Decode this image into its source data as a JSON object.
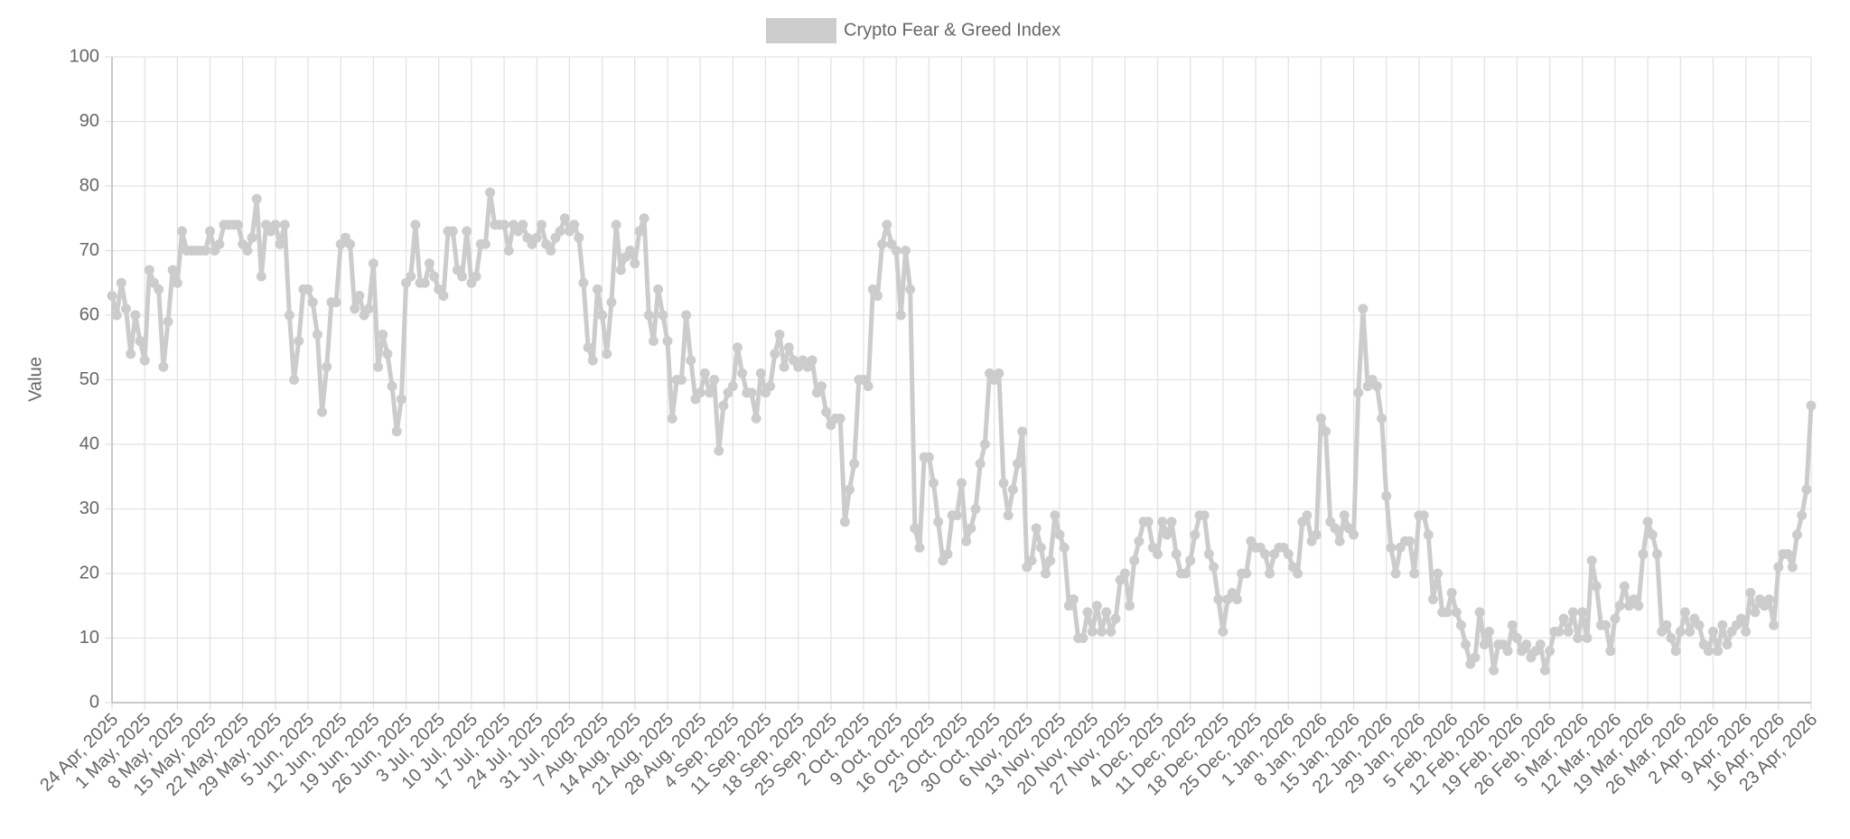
{
  "chart_data": {
    "type": "line",
    "y_label": "Value",
    "ylim": [
      0,
      100
    ],
    "yticks": [
      0,
      10,
      20,
      30,
      40,
      50,
      60,
      70,
      80,
      90,
      100
    ],
    "grid": true,
    "legend": "top",
    "categories": [
      "24 Apr, 2025",
      null,
      null,
      null,
      null,
      null,
      null,
      "1 May, 2025",
      null,
      null,
      null,
      null,
      null,
      null,
      "8 May, 2025",
      null,
      null,
      null,
      null,
      null,
      null,
      "15 May, 2025",
      null,
      null,
      null,
      null,
      null,
      null,
      "22 May, 2025",
      null,
      null,
      null,
      null,
      null,
      null,
      "29 May, 2025",
      null,
      null,
      null,
      null,
      null,
      null,
      "5 Jun, 2025",
      null,
      null,
      null,
      null,
      null,
      null,
      "12 Jun, 2025",
      null,
      null,
      null,
      null,
      null,
      null,
      "19 Jun, 2025",
      null,
      null,
      null,
      null,
      null,
      null,
      "26 Jun, 2025",
      null,
      null,
      null,
      null,
      null,
      null,
      "3 Jul, 2025",
      null,
      null,
      null,
      null,
      null,
      null,
      "10 Jul, 2025",
      null,
      null,
      null,
      null,
      null,
      null,
      "17 Jul, 2025",
      null,
      null,
      null,
      null,
      null,
      null,
      "24 Jul, 2025",
      null,
      null,
      null,
      null,
      null,
      null,
      "31 Jul, 2025",
      null,
      null,
      null,
      null,
      null,
      null,
      "7 Aug, 2025",
      null,
      null,
      null,
      null,
      null,
      null,
      "14 Aug, 2025",
      null,
      null,
      null,
      null,
      null,
      null,
      "21 Aug, 2025",
      null,
      null,
      null,
      null,
      null,
      null,
      "28 Aug, 2025",
      null,
      null,
      null,
      null,
      null,
      null,
      "4 Sep, 2025",
      null,
      null,
      null,
      null,
      null,
      null,
      "11 Sep, 2025",
      null,
      null,
      null,
      null,
      null,
      null,
      "18 Sep, 2025",
      null,
      null,
      null,
      null,
      null,
      null,
      "25 Sep, 2025",
      null,
      null,
      null,
      null,
      null,
      null,
      "2 Oct, 2025",
      null,
      null,
      null,
      null,
      null,
      null,
      "9 Oct, 2025",
      null,
      null,
      null,
      null,
      null,
      null,
      "16 Oct, 2025",
      null,
      null,
      null,
      null,
      null,
      null,
      "23 Oct, 2025",
      null,
      null,
      null,
      null,
      null,
      null,
      "30 Oct, 2025",
      null,
      null,
      null,
      null,
      null,
      null,
      "6 Nov, 2025",
      null,
      null,
      null,
      null,
      null,
      null,
      "13 Nov, 2025",
      null,
      null,
      null,
      null,
      null,
      null,
      "20 Nov, 2025",
      null,
      null,
      null,
      null,
      null,
      null,
      "27 Nov, 2025",
      null,
      null,
      null,
      null,
      null,
      null,
      "4 Dec, 2025",
      null,
      null,
      null,
      null,
      null,
      null,
      "11 Dec, 2025",
      null,
      null,
      null,
      null,
      null,
      null,
      "18 Dec, 2025",
      null,
      null,
      null,
      null,
      null,
      null,
      "25 Dec, 2025",
      null,
      null,
      null,
      null,
      null,
      null,
      "1 Jan, 2026",
      null,
      null,
      null,
      null,
      null,
      null,
      "8 Jan, 2026",
      null,
      null,
      null,
      null,
      null,
      null,
      "15 Jan, 2026",
      null,
      null,
      null,
      null,
      null,
      null,
      "22 Jan, 2026",
      null,
      null,
      null,
      null,
      null,
      null,
      "29 Jan, 2026",
      null,
      null,
      null,
      null,
      null,
      null,
      "5 Feb, 2026",
      null,
      null,
      null,
      null,
      null,
      null,
      "12 Feb, 2026",
      null,
      null,
      null,
      null,
      null,
      null,
      "19 Feb, 2026",
      null,
      null,
      null,
      null,
      null,
      null,
      "26 Feb, 2026",
      null,
      null,
      null,
      null,
      null,
      null,
      "5 Mar, 2026",
      null,
      null,
      null,
      null,
      null,
      null,
      "12 Mar, 2026",
      null,
      null,
      null,
      null,
      null,
      null,
      "19 Mar, 2026",
      null,
      null,
      null,
      null,
      null,
      null,
      "26 Mar, 2026",
      null,
      null,
      null,
      null,
      null,
      null,
      "2 Apr, 2026",
      null,
      null,
      null,
      null,
      null,
      null,
      "9 Apr, 2026",
      null,
      null,
      null,
      null,
      null,
      null,
      "16 Apr, 2026",
      null,
      null,
      null,
      null,
      null,
      null,
      "23 Apr, 2026"
    ],
    "series": [
      {
        "name": "Crypto Fear & Greed Index",
        "color": "#cccccc",
        "values": [
          63,
          60,
          65,
          61,
          54,
          60,
          56,
          53,
          67,
          65,
          64,
          52,
          59,
          67,
          65,
          73,
          70,
          70,
          70,
          70,
          70,
          73,
          70,
          71,
          74,
          74,
          74,
          74,
          71,
          70,
          72,
          78,
          66,
          74,
          73,
          74,
          71,
          74,
          60,
          50,
          56,
          64,
          64,
          62,
          57,
          45,
          52,
          62,
          62,
          71,
          72,
          71,
          61,
          63,
          60,
          61,
          68,
          52,
          57,
          54,
          49,
          42,
          47,
          65,
          66,
          74,
          65,
          65,
          68,
          66,
          64,
          63,
          73,
          73,
          67,
          66,
          73,
          65,
          66,
          71,
          71,
          79,
          74,
          74,
          74,
          70,
          74,
          73,
          74,
          72,
          71,
          72,
          74,
          71,
          70,
          72,
          73,
          75,
          73,
          74,
          72,
          65,
          55,
          53,
          64,
          60,
          54,
          62,
          74,
          67,
          69,
          70,
          68,
          73,
          75,
          60,
          56,
          64,
          60,
          56,
          44,
          50,
          50,
          60,
          53,
          47,
          48,
          51,
          48,
          50,
          39,
          46,
          48,
          49,
          55,
          51,
          48,
          48,
          44,
          51,
          48,
          49,
          54,
          57,
          52,
          55,
          53,
          52,
          53,
          52,
          53,
          48,
          49,
          45,
          43,
          44,
          44,
          28,
          33,
          37,
          50,
          50,
          49,
          64,
          63,
          71,
          74,
          71,
          70,
          60,
          70,
          64,
          27,
          24,
          38,
          38,
          34,
          28,
          22,
          23,
          29,
          29,
          34,
          25,
          27,
          30,
          37,
          40,
          51,
          50,
          51,
          34,
          29,
          33,
          37,
          42,
          21,
          22,
          27,
          24,
          20,
          22,
          29,
          26,
          24,
          15,
          16,
          10,
          10,
          14,
          11,
          15,
          11,
          14,
          11,
          13,
          19,
          20,
          15,
          22,
          25,
          28,
          28,
          24,
          23,
          28,
          26,
          28,
          23,
          20,
          20,
          22,
          26,
          29,
          29,
          23,
          21,
          16,
          11,
          16,
          17,
          16,
          20,
          20,
          25,
          24,
          24,
          23,
          20,
          23,
          24,
          24,
          23,
          21,
          20,
          28,
          29,
          25,
          26,
          44,
          42,
          28,
          27,
          25,
          29,
          27,
          26,
          48,
          61,
          49,
          50,
          49,
          44,
          32,
          24,
          20,
          24,
          25,
          25,
          20,
          29,
          29,
          26,
          16,
          20,
          14,
          14,
          17,
          14,
          12,
          9,
          6,
          7,
          14,
          9,
          11,
          5,
          9,
          9,
          8,
          12,
          10,
          8,
          9,
          7,
          8,
          9,
          5,
          8,
          11,
          11,
          13,
          11,
          14,
          10,
          14,
          10,
          22,
          18,
          12,
          12,
          8,
          13,
          15,
          18,
          15,
          16,
          15,
          23,
          28,
          26,
          23,
          11,
          12,
          10,
          8,
          11,
          14,
          11,
          13,
          12,
          9,
          8,
          11,
          8,
          12,
          9,
          11,
          12,
          13,
          11,
          17,
          14,
          16,
          15,
          16,
          12,
          21,
          23,
          23,
          21,
          26,
          29,
          33,
          46
        ]
      }
    ]
  }
}
